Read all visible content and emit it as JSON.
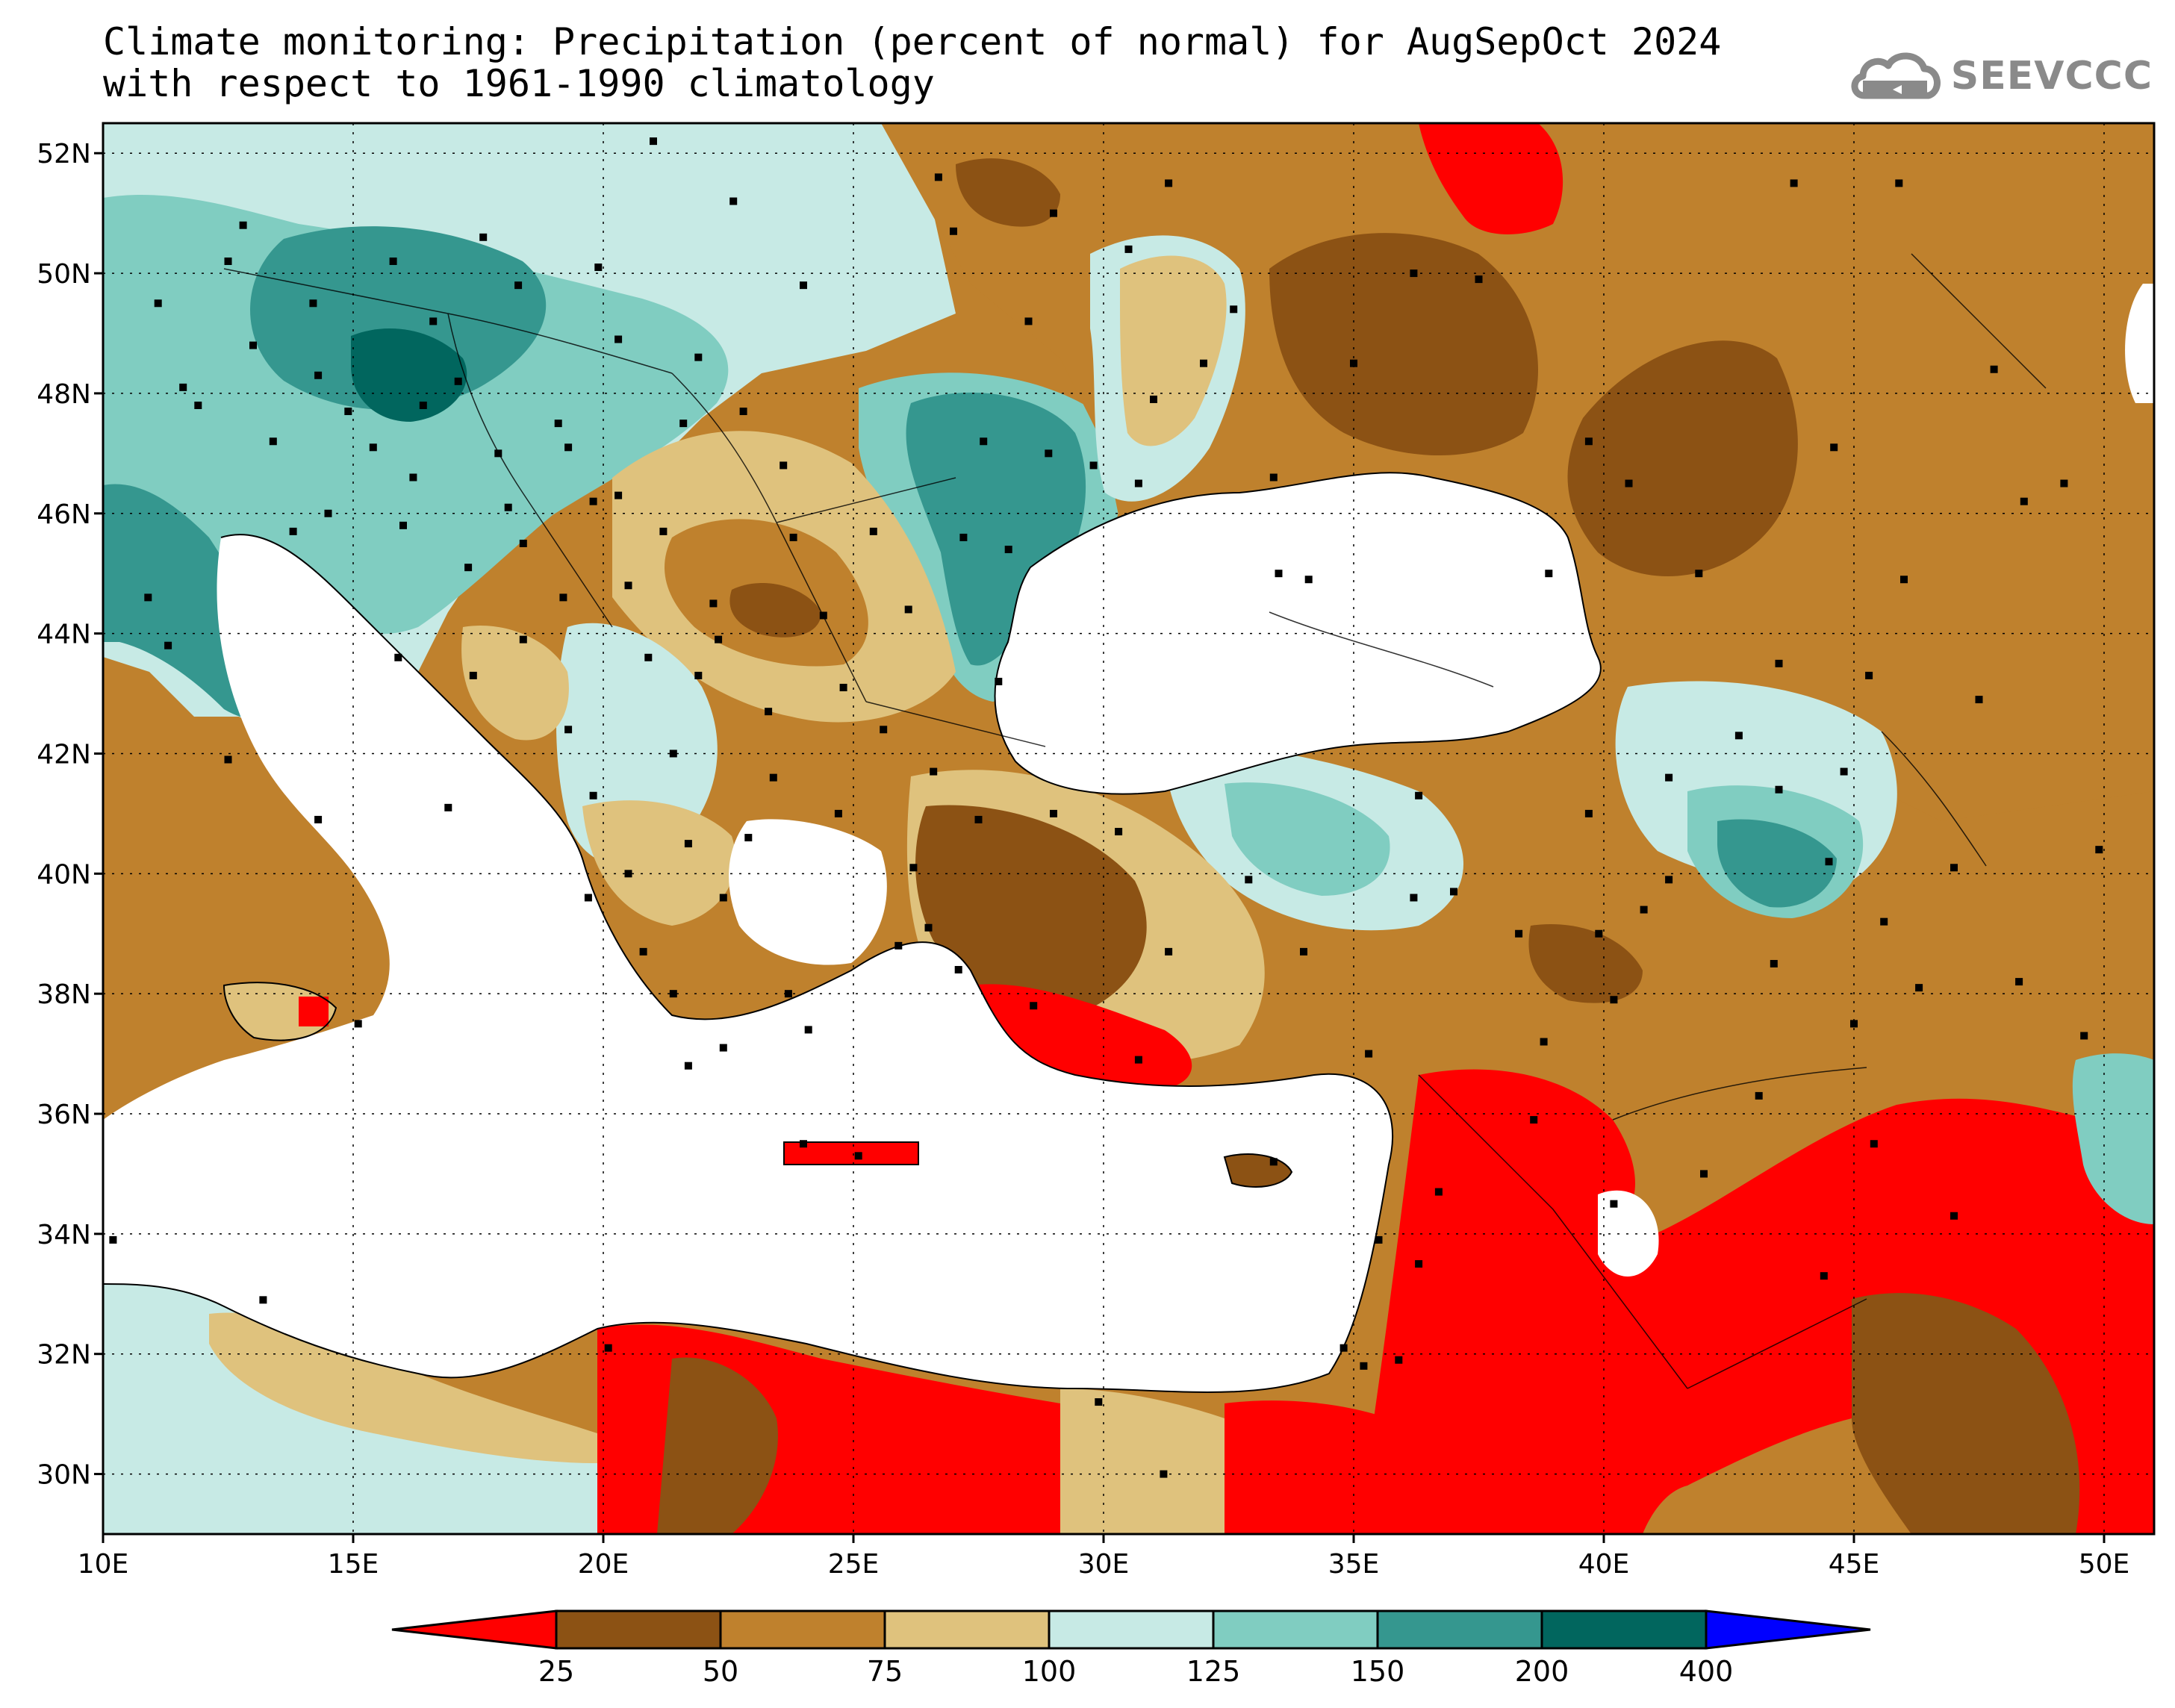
{
  "title": {
    "line1": "Climate monitoring: Precipitation (percent of normal) for AugSepOct 2024",
    "line2": "with respect to 1961-1990 climatology"
  },
  "logo": {
    "text": "SEEVCCC",
    "icon": "cloud-icon",
    "color": "#8a8a8a"
  },
  "map": {
    "lon_range": [
      10,
      51
    ],
    "lat_range": [
      29,
      52.5
    ],
    "lon_ticks": [
      "10E",
      "15E",
      "20E",
      "25E",
      "30E",
      "35E",
      "40E",
      "45E",
      "50E"
    ],
    "lat_ticks": [
      "52N",
      "50N",
      "48N",
      "46N",
      "44N",
      "42N",
      "40N",
      "38N",
      "36N",
      "34N",
      "32N",
      "30N"
    ],
    "grid": "dotted"
  },
  "colorbar": {
    "labels": [
      "25",
      "50",
      "75",
      "100",
      "125",
      "150",
      "200",
      "400"
    ],
    "classes": [
      {
        "range": "<25",
        "color": "#ff0000"
      },
      {
        "range": "25-50",
        "color": "#8c5214"
      },
      {
        "range": "50-75",
        "color": "#bf812d"
      },
      {
        "range": "75-100",
        "color": "#dfc27d"
      },
      {
        "range": "100-125",
        "color": "#c7eae5"
      },
      {
        "range": "125-150",
        "color": "#80cdc1"
      },
      {
        "range": "150-200",
        "color": "#35978f"
      },
      {
        "range": "200-400",
        "color": "#01665e"
      },
      {
        "range": ">400",
        "color": "#0000ff"
      }
    ]
  }
}
